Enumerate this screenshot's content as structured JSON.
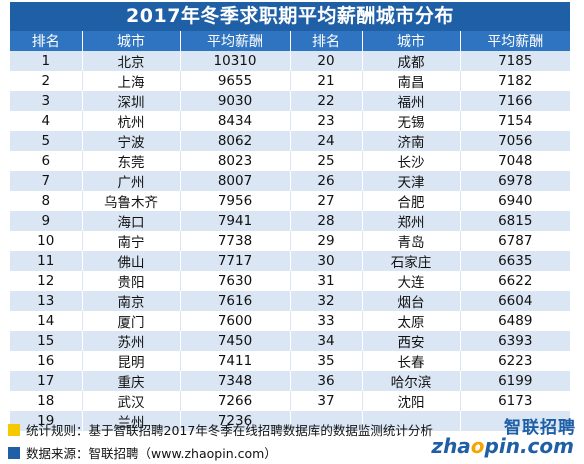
{
  "title": "2017年冬季求职期平均薪酬城市分布",
  "headers": [
    "排名",
    "城市",
    "平均薪酬",
    "排名",
    "城市",
    "平均薪酬"
  ],
  "left": [
    {
      "rank": "1",
      "city": "北京",
      "salary": "10310"
    },
    {
      "rank": "2",
      "city": "上海",
      "salary": "9655"
    },
    {
      "rank": "3",
      "city": "深圳",
      "salary": "9030"
    },
    {
      "rank": "4",
      "city": "杭州",
      "salary": "8434"
    },
    {
      "rank": "5",
      "city": "宁波",
      "salary": "8062"
    },
    {
      "rank": "6",
      "city": "东莞",
      "salary": "8023"
    },
    {
      "rank": "7",
      "city": "广州",
      "salary": "8007"
    },
    {
      "rank": "8",
      "city": "乌鲁木齐",
      "salary": "7956"
    },
    {
      "rank": "9",
      "city": "海口",
      "salary": "7941"
    },
    {
      "rank": "10",
      "city": "南宁",
      "salary": "7738"
    },
    {
      "rank": "11",
      "city": "佛山",
      "salary": "7717"
    },
    {
      "rank": "12",
      "city": "贵阳",
      "salary": "7630"
    },
    {
      "rank": "13",
      "city": "南京",
      "salary": "7616"
    },
    {
      "rank": "14",
      "city": "厦门",
      "salary": "7600"
    },
    {
      "rank": "15",
      "city": "苏州",
      "salary": "7450"
    },
    {
      "rank": "16",
      "city": "昆明",
      "salary": "7411"
    },
    {
      "rank": "17",
      "city": "重庆",
      "salary": "7348"
    },
    {
      "rank": "18",
      "city": "武汉",
      "salary": "7266"
    },
    {
      "rank": "19",
      "city": "兰州",
      "salary": "7236"
    }
  ],
  "right": [
    {
      "rank": "20",
      "city": "成都",
      "salary": "7185"
    },
    {
      "rank": "21",
      "city": "南昌",
      "salary": "7182"
    },
    {
      "rank": "22",
      "city": "福州",
      "salary": "7166"
    },
    {
      "rank": "23",
      "city": "无锡",
      "salary": "7154"
    },
    {
      "rank": "24",
      "city": "济南",
      "salary": "7056"
    },
    {
      "rank": "25",
      "city": "长沙",
      "salary": "7048"
    },
    {
      "rank": "26",
      "city": "天津",
      "salary": "6978"
    },
    {
      "rank": "27",
      "city": "合肥",
      "salary": "6940"
    },
    {
      "rank": "28",
      "city": "郑州",
      "salary": "6815"
    },
    {
      "rank": "29",
      "city": "青岛",
      "salary": "6787"
    },
    {
      "rank": "30",
      "city": "石家庄",
      "salary": "6635"
    },
    {
      "rank": "31",
      "city": "大连",
      "salary": "6622"
    },
    {
      "rank": "32",
      "city": "烟台",
      "salary": "6604"
    },
    {
      "rank": "33",
      "city": "太原",
      "salary": "6489"
    },
    {
      "rank": "34",
      "city": "西安",
      "salary": "6393"
    },
    {
      "rank": "35",
      "city": "长春",
      "salary": "6223"
    },
    {
      "rank": "36",
      "city": "哈尔滨",
      "salary": "6199"
    },
    {
      "rank": "37",
      "city": "沈阳",
      "salary": "6173"
    },
    {
      "rank": "",
      "city": "",
      "salary": ""
    }
  ],
  "footer": {
    "rule": "统计规则：基于智联招聘2017年冬季在线招聘数据库的数据监测统计分析",
    "source": "数据来源：智联招聘（www.zhaopin.com）"
  },
  "logo": {
    "cn": "智联招聘",
    "en_prefix": "zha",
    "en_o": "o",
    "en_suffix": "pin.com"
  },
  "colors": {
    "title_bg": "#1f5fa6",
    "header_bg": "#2e74c0",
    "stripe": "#dae6f3",
    "accent_yellow": "#f5c800"
  }
}
